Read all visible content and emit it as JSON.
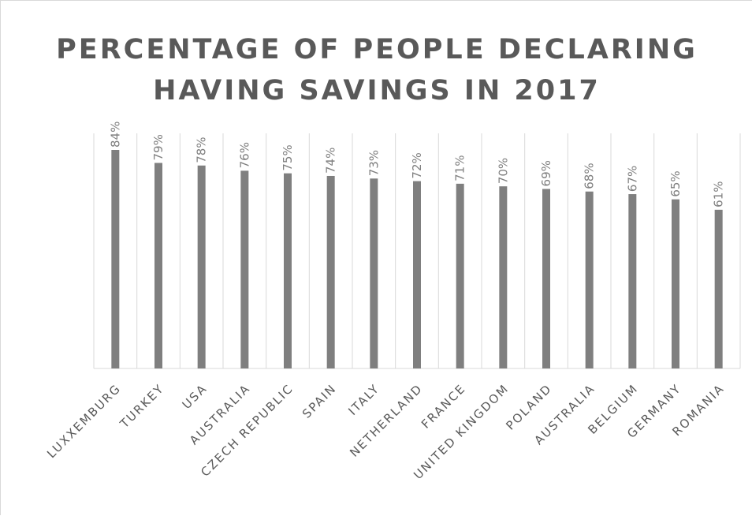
{
  "chart_data": {
    "type": "bar",
    "title": "PERCENTAGE OF PEOPLE DECLARING HAVING SAVINGS IN 2017",
    "categories": [
      "LUXXEMBURG",
      "TURKEY",
      "USA",
      "AUSTRALIA",
      "CZECH REPUBLIC",
      "SPAIN",
      "ITALY",
      "NETHERLAND",
      "FRANCE",
      "UNITED KINGDOM",
      "POLAND",
      "AUSTRALIA",
      "BELGIUM",
      "GERMANY",
      "ROMANIA"
    ],
    "values": [
      84,
      79,
      78,
      76,
      75,
      74,
      73,
      72,
      71,
      70,
      69,
      68,
      67,
      65,
      61
    ],
    "value_labels": [
      "84%",
      "79%",
      "78%",
      "76%",
      "75%",
      "74%",
      "73%",
      "72%",
      "71%",
      "70%",
      "69%",
      "68%",
      "67%",
      "65%",
      "61%"
    ],
    "ylim": [
      0,
      100
    ],
    "grid": true,
    "bar_color": "#7f7f7f",
    "xlabel": "",
    "ylabel": ""
  }
}
